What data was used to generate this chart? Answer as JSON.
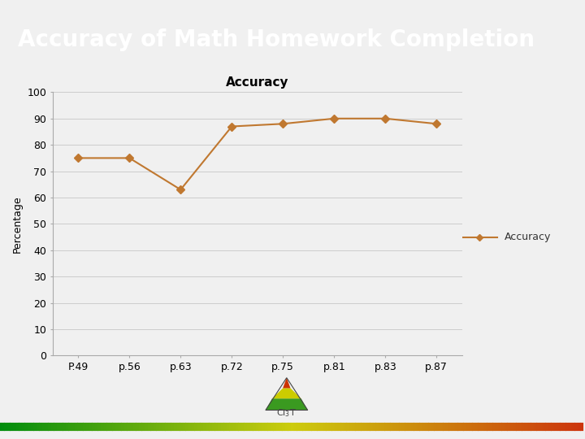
{
  "title": "Accuracy of Math Homework Completion",
  "chart_title": "Accuracy",
  "x_labels": [
    "P.49",
    "p.56",
    "p.63",
    "p.72",
    "p.75",
    "p.81",
    "p.83",
    "p.87"
  ],
  "y_values": [
    75,
    75,
    63,
    87,
    88,
    90,
    90,
    88
  ],
  "line_color": "#C07830",
  "marker": "D",
  "marker_size": 5,
  "ylabel": "Percentage",
  "ylim": [
    0,
    100
  ],
  "yticks": [
    0,
    10,
    20,
    30,
    40,
    50,
    60,
    70,
    80,
    90,
    100
  ],
  "legend_label": "Accuracy",
  "header_bg_color": "#888888",
  "header_text_color": "#ffffff",
  "header_fontsize": 20,
  "chart_bg_color": "#f0f0f0",
  "plot_bg_color": "#f0f0f0",
  "grid_color": "#cccccc",
  "title_fontsize": 11,
  "axis_fontsize": 9,
  "legend_fontsize": 9,
  "bottom_line_colors": [
    "#4a7c2a",
    "#ccaa00",
    "#cc3300"
  ],
  "logo_tri_colors": [
    "#3a9a20",
    "#c8cc00",
    "#cc2200"
  ]
}
